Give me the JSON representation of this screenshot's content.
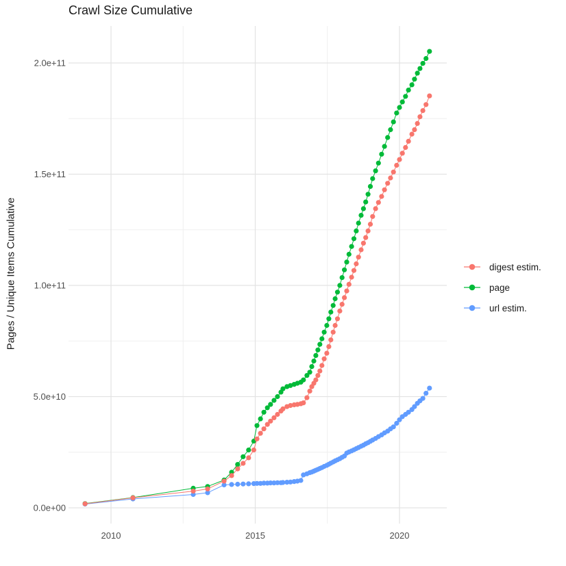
{
  "title": "Crawl Size Cumulative",
  "y_axis": {
    "title": "Pages / Unique Items Cumulative",
    "ticks": [
      {
        "label": "0.0e+00",
        "value_e9": 0
      },
      {
        "label": "5.0e+10",
        "value_e9": 50
      },
      {
        "label": "1.0e+11",
        "value_e9": 100
      },
      {
        "label": "1.5e+11",
        "value_e9": 150
      },
      {
        "label": "2.0e+11",
        "value_e9": 200
      }
    ]
  },
  "x_axis": {
    "ticks": [
      {
        "label": "2010",
        "year": 2010
      },
      {
        "label": "2015",
        "year": 2015
      },
      {
        "label": "2020",
        "year": 2020
      }
    ]
  },
  "legend": {
    "entries": [
      {
        "label": "digest estim.",
        "color": "#F8766D",
        "series": "digest estim."
      },
      {
        "label": "page",
        "color": "#00BA38",
        "series": "page"
      },
      {
        "label": "url estim.",
        "color": "#619CFF",
        "series": "url estim."
      }
    ]
  },
  "chart_data": {
    "type": "line",
    "title": "Crawl Size Cumulative",
    "xlabel": "",
    "ylabel": "Pages / Unique Items Cumulative",
    "value_units": "billions (1e9 items)",
    "xlim": [
      2008.55,
      2021.6
    ],
    "ylim_e9": [
      0,
      216
    ],
    "grid": {
      "x_major": [
        2010,
        2015,
        2020
      ],
      "x_minor": [
        2012.5,
        2017.5
      ],
      "y_major_e9": [
        0,
        50,
        100,
        150,
        200
      ],
      "y_minor_e9": [
        25,
        75,
        125,
        175
      ]
    },
    "legend_position": "right",
    "marker": "point-with-line",
    "x_years": [
      2009.1,
      2010.76,
      2012.85,
      2013.35,
      2013.92,
      2014.18,
      2014.39,
      2014.58,
      2014.77,
      2014.95,
      2015.06,
      2015.18,
      2015.3,
      2015.42,
      2015.53,
      2015.65,
      2015.77,
      2015.89,
      2015.96,
      2016.1,
      2016.22,
      2016.35,
      2016.46,
      2016.58,
      2016.67,
      2016.79,
      2016.89,
      2016.96,
      2017.03,
      2017.1,
      2017.17,
      2017.24,
      2017.31,
      2017.39,
      2017.48,
      2017.55,
      2017.62,
      2017.7,
      2017.77,
      2017.85,
      2017.93,
      2018.01,
      2018.09,
      2018.17,
      2018.25,
      2018.34,
      2018.42,
      2018.5,
      2018.58,
      2018.67,
      2018.75,
      2018.83,
      2018.91,
      2018.99,
      2019.07,
      2019.17,
      2019.27,
      2019.38,
      2019.48,
      2019.59,
      2019.69,
      2019.79,
      2019.9,
      2020.0,
      2020.1,
      2020.21,
      2020.31,
      2020.43,
      2020.52,
      2020.62,
      2020.71,
      2020.81,
      2020.92,
      2021.04
    ],
    "series": [
      {
        "name": "digest estim.",
        "color": "#F8766D",
        "z": 3,
        "values_e9": [
          1.8,
          4.5,
          7.5,
          8.5,
          12.0,
          14.5,
          17.5,
          20.0,
          22.5,
          26.0,
          31.0,
          33.5,
          35.5,
          37.5,
          39.0,
          40.5,
          42.0,
          43.5,
          44.5,
          45.5,
          46.0,
          46.3,
          46.5,
          46.8,
          47.2,
          49.5,
          52.5,
          54.5,
          56.0,
          57.5,
          59.5,
          61.5,
          64.0,
          67.0,
          69.5,
          72.5,
          75.5,
          79.0,
          82.0,
          85.0,
          88.5,
          91.5,
          94.5,
          97.5,
          100.5,
          103.7,
          106.7,
          109.7,
          112.7,
          116.0,
          119.0,
          121.5,
          124.5,
          127.5,
          131.0,
          134.5,
          137.3,
          140.0,
          143.0,
          145.9,
          148.3,
          151.0,
          154.0,
          156.6,
          159.4,
          162.0,
          164.8,
          168.0,
          170.0,
          172.8,
          175.8,
          178.6,
          181.3,
          185.2
        ]
      },
      {
        "name": "page",
        "color": "#00BA38",
        "z": 2,
        "values_e9": [
          1.9,
          4.6,
          8.8,
          9.6,
          12.5,
          16.0,
          19.5,
          23.0,
          26.0,
          30.0,
          37.0,
          40.0,
          43.0,
          45.0,
          46.5,
          48.3,
          50.0,
          52.0,
          53.5,
          54.5,
          55.0,
          55.5,
          56.0,
          56.5,
          57.5,
          59.5,
          61.0,
          63.5,
          66.0,
          68.5,
          71.0,
          73.5,
          76.0,
          79.0,
          82.0,
          85.0,
          88.0,
          91.0,
          94.0,
          97.0,
          100.0,
          103.5,
          107.0,
          110.5,
          114.0,
          117.5,
          121.0,
          124.5,
          128.0,
          131.5,
          134.5,
          137.5,
          141.0,
          144.5,
          148.0,
          151.5,
          155.0,
          159.0,
          162.5,
          166.5,
          170.0,
          173.5,
          177.5,
          180.0,
          182.5,
          185.0,
          187.8,
          190.2,
          192.7,
          195.4,
          197.5,
          199.8,
          202.0,
          205.2
        ]
      },
      {
        "name": "url estim.",
        "color": "#619CFF",
        "z": 1,
        "values_e9": [
          1.7,
          4.0,
          6.0,
          6.8,
          10.3,
          10.5,
          10.6,
          10.7,
          10.8,
          10.9,
          11.0,
          11.0,
          11.1,
          11.1,
          11.2,
          11.2,
          11.3,
          11.3,
          11.4,
          11.5,
          11.6,
          11.8,
          12.0,
          12.3,
          14.8,
          15.3,
          15.8,
          16.1,
          16.5,
          16.9,
          17.3,
          17.7,
          18.1,
          18.6,
          19.1,
          19.6,
          20.1,
          20.6,
          21.1,
          21.6,
          22.1,
          22.7,
          23.3,
          24.6,
          25.1,
          25.6,
          26.1,
          26.6,
          27.1,
          27.7,
          28.2,
          28.8,
          29.3,
          29.9,
          30.5,
          31.2,
          32.0,
          32.8,
          33.7,
          34.5,
          35.5,
          36.4,
          38.0,
          39.6,
          41.0,
          42.0,
          43.0,
          44.2,
          45.5,
          47.0,
          48.1,
          49.2,
          51.5,
          53.8
        ]
      }
    ]
  }
}
